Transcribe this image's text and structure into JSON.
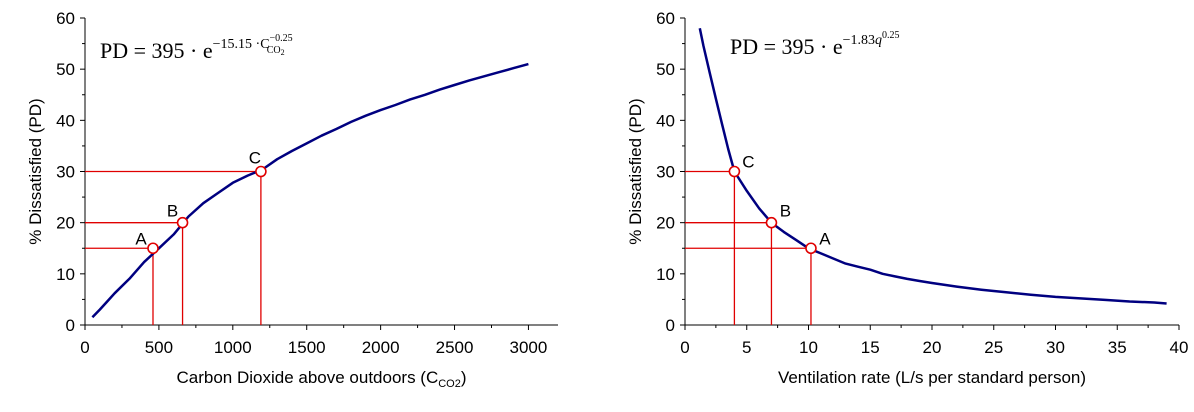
{
  "chart_data": [
    {
      "type": "line",
      "xlabel": "Carbon Dioxide above outdoors (C",
      "xlabel_sub": "CO2",
      "xlabel_end": ")",
      "ylabel": "% Dissatisfied (PD)",
      "xlim": [
        0,
        3200
      ],
      "ylim": [
        0,
        60
      ],
      "x_ticks": [
        "0",
        "500",
        "1000",
        "1500",
        "2000",
        "2500",
        "3000"
      ],
      "y_ticks": [
        "0",
        "10",
        "20",
        "30",
        "40",
        "50",
        "60"
      ],
      "formula": {
        "lhs": "PD",
        "eq": "=",
        "coef": "395",
        "dot": "·",
        "base": "e",
        "exp_main": "−15.15 ·C",
        "exp_sub": "CO",
        "exp_sub2": "2",
        "exp_sup": "−0.25"
      },
      "curve": {
        "x": [
          50,
          100,
          150,
          200,
          300,
          400,
          500,
          600,
          700,
          800,
          900,
          1000,
          1100,
          1200,
          1300,
          1400,
          1500,
          1600,
          1700,
          1800,
          1900,
          2000,
          2100,
          2200,
          2300,
          2400,
          2500,
          2600,
          2700,
          2800,
          2900,
          3000
        ],
        "y": [
          1.5,
          3.0,
          4.6,
          6.2,
          9.0,
          12.3,
          15.0,
          17.7,
          21.2,
          23.8,
          25.8,
          27.8,
          29.2,
          30.4,
          32.4,
          34.0,
          35.5,
          37.0,
          38.3,
          39.7,
          40.9,
          42.0,
          43.0,
          44.1,
          45.0,
          46.0,
          46.9,
          47.8,
          48.6,
          49.4,
          50.2,
          51.0
        ],
        "color": "#000080"
      },
      "points": [
        {
          "label": "A",
          "x": 460,
          "y": 15
        },
        {
          "label": "B",
          "x": 660,
          "y": 20
        },
        {
          "label": "C",
          "x": 1190,
          "y": 30
        }
      ],
      "marker_color": "#e00000",
      "grid": false
    },
    {
      "type": "line",
      "xlabel": "Ventilation rate (L/s per standard person)",
      "ylabel": "% Dissatisfied (PD)",
      "xlim": [
        0,
        40
      ],
      "ylim": [
        0,
        60
      ],
      "x_ticks": [
        "0",
        "5",
        "10",
        "15",
        "20",
        "25",
        "30",
        "35",
        "40"
      ],
      "y_ticks": [
        "0",
        "10",
        "20",
        "30",
        "40",
        "50",
        "60"
      ],
      "formula": {
        "lhs": "PD",
        "eq": "=",
        "coef": "395",
        "dot": "·",
        "base": "e",
        "exp_main": "−1.83",
        "exp_var": "q",
        "exp_sup": "0.25"
      },
      "curve": {
        "x": [
          1.2,
          1.5,
          2,
          2.5,
          3,
          3.5,
          4,
          5,
          6,
          7,
          8,
          9,
          10,
          11,
          12,
          13,
          14,
          15,
          16,
          17,
          18,
          19,
          20,
          22,
          24,
          26,
          28,
          30,
          32,
          34,
          36,
          38,
          39
        ],
        "y": [
          58,
          54.5,
          49.3,
          44.2,
          39.3,
          34.4,
          30.0,
          26.2,
          22.8,
          20.0,
          18.2,
          16.6,
          15.0,
          14.0,
          13.0,
          12.0,
          11.4,
          10.8,
          10.0,
          9.5,
          9.0,
          8.6,
          8.2,
          7.5,
          6.9,
          6.4,
          5.9,
          5.5,
          5.2,
          4.9,
          4.6,
          4.4,
          4.2
        ],
        "color": "#000080"
      },
      "points": [
        {
          "label": "C",
          "x": 4.0,
          "y": 30
        },
        {
          "label": "B",
          "x": 7.0,
          "y": 20
        },
        {
          "label": "A",
          "x": 10.2,
          "y": 15
        }
      ],
      "marker_color": "#e00000",
      "grid": false
    }
  ]
}
